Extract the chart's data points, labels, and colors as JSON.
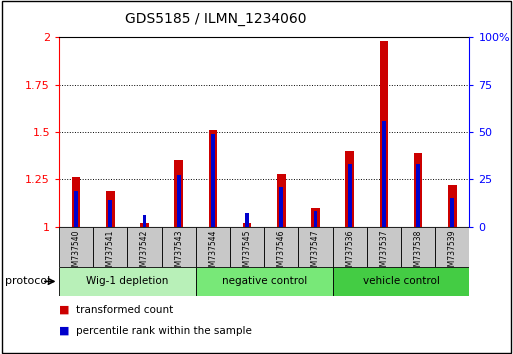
{
  "title": "GDS5185 / ILMN_1234060",
  "samples": [
    "GSM737540",
    "GSM737541",
    "GSM737542",
    "GSM737543",
    "GSM737544",
    "GSM737545",
    "GSM737546",
    "GSM737547",
    "GSM737536",
    "GSM737537",
    "GSM737538",
    "GSM737539"
  ],
  "red_values": [
    1.26,
    1.19,
    1.02,
    1.35,
    1.51,
    1.02,
    1.28,
    1.1,
    1.4,
    1.98,
    1.39,
    1.22
  ],
  "blue_values": [
    1.19,
    1.14,
    1.06,
    1.27,
    1.49,
    1.07,
    1.21,
    1.08,
    1.33,
    1.56,
    1.33,
    1.15
  ],
  "groups": [
    {
      "label": "Wig-1 depletion",
      "start": 0,
      "end": 3,
      "color": "#b8f0b8"
    },
    {
      "label": "negative control",
      "start": 4,
      "end": 7,
      "color": "#78e878"
    },
    {
      "label": "vehicle control",
      "start": 8,
      "end": 11,
      "color": "#44cc44"
    }
  ],
  "ylim_left": [
    1.0,
    2.0
  ],
  "ylim_right": [
    0,
    100
  ],
  "yticks_left": [
    1.0,
    1.25,
    1.5,
    1.75,
    2.0
  ],
  "yticks_right": [
    0,
    25,
    50,
    75,
    100
  ],
  "ytick_labels_left": [
    "1",
    "1.25",
    "1.5",
    "1.75",
    "2"
  ],
  "ytick_labels_right": [
    "0",
    "25",
    "50",
    "75",
    "100%"
  ],
  "red_color": "#cc0000",
  "blue_color": "#0000cc",
  "label_red": "transformed count",
  "label_blue": "percentile rank within the sample",
  "protocol_label": "protocol",
  "sample_bg": "#c8c8c8",
  "bar_width": 0.25
}
